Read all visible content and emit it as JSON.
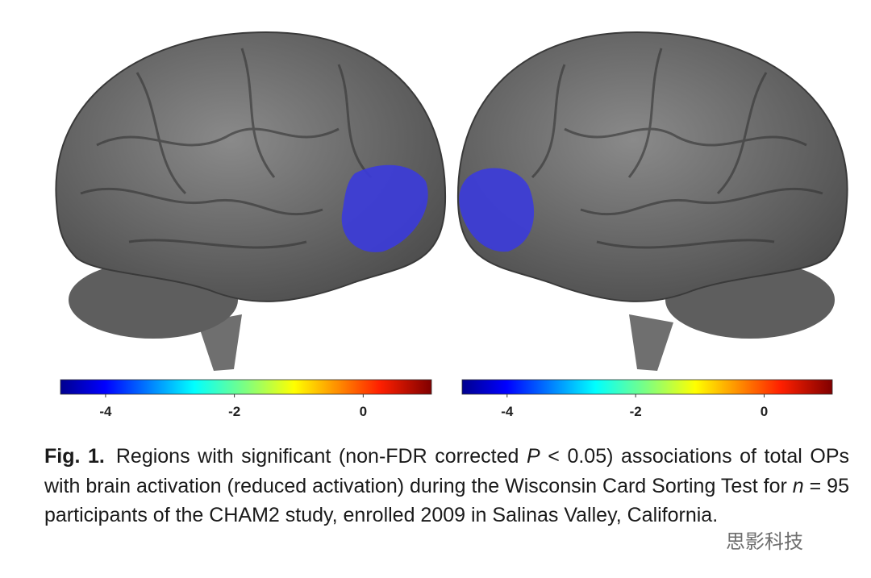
{
  "figure": {
    "colorbars": [
      {
        "lim": [
          -4.7,
          1.06
        ],
        "ticks": [
          -4,
          -2,
          0
        ]
      },
      {
        "lim": [
          -4.7,
          1.06
        ],
        "ticks": [
          -4,
          -2,
          0
        ]
      }
    ],
    "caption": {
      "label": "Fig. 1.",
      "parts": [
        "Regions with significant (non-FDR corrected ",
        "P",
        " < 0.05) associations of total OPs with brain activation (reduced activation) during the Wisconsin Card Sorting Test for ",
        "n",
        " = 95 participants of the CHAM2 study, enrolled 2009 in Salinas Valley, California."
      ]
    },
    "watermark": "思影科技"
  }
}
